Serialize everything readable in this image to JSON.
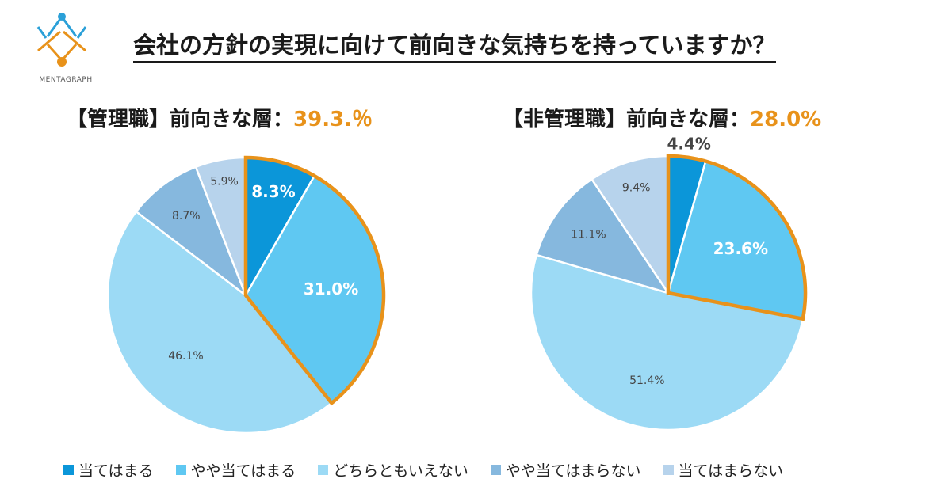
{
  "title": "会社の方針の実現に向けて前向きな気持ちを持っていますか？",
  "logo_text": "MENTAGRAPH",
  "colors": {
    "highlight": "#E8921A",
    "categories": [
      "#0B96D9",
      "#5FC8F2",
      "#9CDAF5",
      "#86B8DE",
      "#B7D3EC"
    ]
  },
  "legend": [
    "当てはまる",
    "やや当てはまる",
    "どちらともいえない",
    "やや当てはまらない",
    "当てはまらない"
  ],
  "chart_data": [
    {
      "type": "pie",
      "subtitle_label": "【管理職】前向きな層：",
      "subtitle_value": "39.3.％",
      "categories": [
        "当てはまる",
        "やや当てはまる",
        "どちらともいえない",
        "やや当てはまらない",
        "当てはまらない"
      ],
      "values": [
        8.3,
        31.0,
        46.1,
        8.7,
        5.9
      ],
      "labels": [
        "8.3%",
        "31.0%",
        "46.1%",
        "8.7%",
        "5.9%"
      ],
      "highlighted": [
        0,
        1
      ]
    },
    {
      "type": "pie",
      "subtitle_label": "【非管理職】前向きな層：",
      "subtitle_value": "28.0%",
      "categories": [
        "当てはまる",
        "やや当てはまる",
        "どちらともいえない",
        "やや当てはまらない",
        "当てはまらない"
      ],
      "values": [
        4.4,
        23.6,
        51.4,
        11.1,
        9.4
      ],
      "labels": [
        "4.4%",
        "23.6%",
        "51.4%",
        "11.1%",
        "9.4%"
      ],
      "highlighted": [
        0,
        1
      ]
    }
  ]
}
